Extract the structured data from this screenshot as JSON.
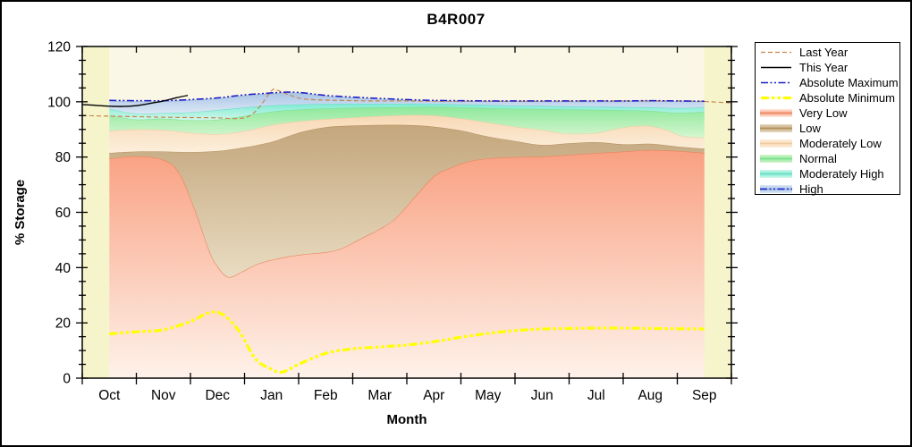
{
  "title": "B4R007",
  "axes": {
    "x_label": "Month",
    "y_label": "% Storage",
    "months": [
      "Oct",
      "Nov",
      "Dec",
      "Jan",
      "Feb",
      "Mar",
      "Apr",
      "May",
      "Jun",
      "Jul",
      "Aug",
      "Sep"
    ],
    "y_ticks": [
      0,
      20,
      40,
      60,
      80,
      100,
      120
    ],
    "y_minor_step": 5,
    "y_min": 0,
    "y_max": 120
  },
  "colors": {
    "plot_bg": "#FBF7E6",
    "edge_strip": "#F5F4CB",
    "frame": "#000000",
    "text": "#000000"
  },
  "legend": [
    {
      "label": "Last Year",
      "kind": "line",
      "color": "#C8854E",
      "width": 1.2,
      "dash": "5 3"
    },
    {
      "label": "This Year",
      "kind": "line",
      "color": "#000000",
      "width": 1.4,
      "dash": ""
    },
    {
      "label": "Absolute Maximum",
      "kind": "line",
      "color": "#1A1ACB",
      "width": 1.5,
      "dash": "8 2.5 2 2.5 2 2.5"
    },
    {
      "label": "Absolute Minimum",
      "kind": "line",
      "color": "#FFFF00",
      "width": 3.2,
      "dash": "9 3 3.5 3 3.5 3"
    },
    {
      "label": "Very Low",
      "kind": "band",
      "top": "#F9A081",
      "bottom": "#FDEDE3",
      "edge": "#E8845C"
    },
    {
      "label": "Low",
      "kind": "band",
      "top": "#C3A67C",
      "bottom": "#E9DCC2",
      "edge": "#B5915F"
    },
    {
      "label": "Moderately Low",
      "kind": "band",
      "top": "#F8D8B5",
      "bottom": "#FCEFDC",
      "edge": "#EDCB9F"
    },
    {
      "label": "Normal",
      "kind": "band",
      "top": "#8EE89B",
      "bottom": "#D6F6D0",
      "edge": "#7BDE8C"
    },
    {
      "label": "Moderately High",
      "kind": "band",
      "top": "#7EEBD3",
      "bottom": "#D2F7EA",
      "edge": "#66DCC4"
    },
    {
      "label": "High",
      "kind": "band",
      "top": "#AAC6E6",
      "bottom": "#DCE8F5",
      "edge": "#9FB9D8",
      "overlay_line": {
        "color": "#1A1ACB",
        "width": 1.5,
        "dash": "8 2.5 2 2.5 2 2.5"
      }
    }
  ],
  "chart_data": {
    "type": "area",
    "title": "B4R007",
    "xlabel": "Month",
    "ylabel": "% Storage",
    "ylim": [
      0,
      120
    ],
    "categories": [
      "Oct",
      "Nov",
      "Dec",
      "Jan",
      "Feb",
      "Mar",
      "Apr",
      "May",
      "Jun",
      "Jul",
      "Aug",
      "Sep"
    ],
    "x_unit_note": "x is in month units, 0 = Oct ... 11 = Sep, values are % storage",
    "boundaries": {
      "very_low_top": [
        [
          0,
          79.5
        ],
        [
          0.5,
          80.3
        ],
        [
          1,
          79
        ],
        [
          1.3,
          74
        ],
        [
          1.6,
          60
        ],
        [
          1.85,
          46
        ],
        [
          2,
          40.5
        ],
        [
          2.2,
          36.6
        ],
        [
          2.45,
          38.5
        ],
        [
          2.7,
          41
        ],
        [
          3,
          42.8
        ],
        [
          3.5,
          44.6
        ],
        [
          4,
          45.6
        ],
        [
          4.3,
          47
        ],
        [
          4.7,
          51
        ],
        [
          5,
          54
        ],
        [
          5.3,
          58
        ],
        [
          5.6,
          64.5
        ],
        [
          6,
          73
        ],
        [
          6.3,
          76
        ],
        [
          6.6,
          78.2
        ],
        [
          7,
          79.5
        ],
        [
          7.5,
          80
        ],
        [
          8,
          80.2
        ],
        [
          8.5,
          80.8
        ],
        [
          9,
          81.4
        ],
        [
          9.5,
          82
        ],
        [
          10,
          82.5
        ],
        [
          10.5,
          82.2
        ],
        [
          11,
          81.5
        ]
      ],
      "low_top": [
        [
          0,
          81.5
        ],
        [
          0.5,
          82
        ],
        [
          1,
          82
        ],
        [
          1.5,
          81.8
        ],
        [
          2,
          82.2
        ],
        [
          2.5,
          83.5
        ],
        [
          3,
          85.5
        ],
        [
          3.3,
          87.5
        ],
        [
          3.6,
          89.3
        ],
        [
          4,
          90.8
        ],
        [
          4.5,
          91.4
        ],
        [
          5,
          91.6
        ],
        [
          5.5,
          91.6
        ],
        [
          6,
          91
        ],
        [
          6.5,
          89.6
        ],
        [
          7,
          87.4
        ],
        [
          7.5,
          85.8
        ],
        [
          8,
          84.4
        ],
        [
          8.5,
          85
        ],
        [
          9,
          85.4
        ],
        [
          9.5,
          84.6
        ],
        [
          10,
          84.8
        ],
        [
          10.5,
          83.8
        ],
        [
          11,
          83
        ]
      ],
      "mod_low_top": [
        [
          0,
          89.5
        ],
        [
          0.5,
          90
        ],
        [
          1,
          89.8
        ],
        [
          1.5,
          88.8
        ],
        [
          2,
          88.3
        ],
        [
          2.5,
          89.4
        ],
        [
          3,
          91.6
        ],
        [
          3.5,
          92.9
        ],
        [
          4,
          93.7
        ],
        [
          4.5,
          94.3
        ],
        [
          5,
          94.8
        ],
        [
          5.5,
          95.2
        ],
        [
          6,
          95
        ],
        [
          6.5,
          94
        ],
        [
          7,
          92.5
        ],
        [
          7.5,
          91
        ],
        [
          8,
          89.8
        ],
        [
          8.3,
          88.8
        ],
        [
          8.6,
          88.4
        ],
        [
          9,
          88.7
        ],
        [
          9.4,
          90.3
        ],
        [
          9.7,
          91.2
        ],
        [
          10,
          91.2
        ],
        [
          10.3,
          89.8
        ],
        [
          10.6,
          87.6
        ],
        [
          11,
          87
        ]
      ],
      "normal_top": [
        [
          0,
          95.2
        ],
        [
          0.5,
          93.6
        ],
        [
          1,
          93.9
        ],
        [
          1.5,
          93.3
        ],
        [
          2,
          93.5
        ],
        [
          2.5,
          94.9
        ],
        [
          3,
          96.4
        ],
        [
          3.5,
          97.2
        ],
        [
          4,
          97.6
        ],
        [
          4.5,
          97.8
        ],
        [
          5,
          98
        ],
        [
          5.5,
          98.1
        ],
        [
          6,
          98.2
        ],
        [
          6.5,
          98
        ],
        [
          7,
          97.7
        ],
        [
          7.5,
          97.5
        ],
        [
          8,
          97.4
        ],
        [
          8.5,
          97.2
        ],
        [
          9,
          97.1
        ],
        [
          9.5,
          96.9
        ],
        [
          10,
          96.7
        ],
        [
          10.5,
          96
        ],
        [
          11,
          96.3
        ]
      ],
      "mod_high_top": [
        [
          0,
          97.4
        ],
        [
          0.5,
          95.7
        ],
        [
          1,
          95.9
        ],
        [
          1.5,
          96.2
        ],
        [
          2,
          97
        ],
        [
          2.5,
          97.9
        ],
        [
          3,
          98.7
        ],
        [
          3.5,
          99
        ],
        [
          4,
          99.2
        ],
        [
          5,
          99.3
        ],
        [
          6,
          99.2
        ],
        [
          6.5,
          99
        ],
        [
          7,
          98.8
        ],
        [
          7.5,
          98.6
        ],
        [
          8,
          98.5
        ],
        [
          8.5,
          98.3
        ],
        [
          9,
          98.2
        ],
        [
          9.5,
          98.1
        ],
        [
          10,
          98
        ],
        [
          10.5,
          97.7
        ],
        [
          11,
          97.9
        ]
      ],
      "high_top": [
        [
          0,
          100.1
        ],
        [
          0.5,
          100
        ],
        [
          1,
          100.1
        ],
        [
          1.5,
          100.5
        ],
        [
          2,
          101.1
        ],
        [
          2.5,
          102.2
        ],
        [
          3,
          102.9
        ],
        [
          3.3,
          103.2
        ],
        [
          3.6,
          102.9
        ],
        [
          4,
          102
        ],
        [
          4.5,
          101.4
        ],
        [
          5,
          100.9
        ],
        [
          5.5,
          100.5
        ],
        [
          6,
          100.2
        ],
        [
          6.5,
          100.1
        ],
        [
          7,
          100.1
        ],
        [
          8,
          100
        ],
        [
          9,
          100
        ],
        [
          10,
          100.1
        ],
        [
          11,
          100
        ]
      ]
    },
    "bands": [
      {
        "name": "Very Low",
        "upper": "very_low_top",
        "top": "#F9A081",
        "bottom": "#FEF2EA",
        "edge": "#E8845C",
        "edge_w": 1.2
      },
      {
        "name": "Low",
        "upper": "low_top",
        "top": "#C3A67C",
        "bottom": "#E9DCC2",
        "edge": "#B5915F",
        "edge_w": 1
      },
      {
        "name": "Moderately Low",
        "upper": "mod_low_top",
        "top": "#F8D8B5",
        "bottom": "#FCEFDC",
        "edge": "#EDCB9F",
        "edge_w": 1
      },
      {
        "name": "Normal",
        "upper": "normal_top",
        "top": "#8EE89B",
        "bottom": "#D6F6D0",
        "edge": "#7BDE8C",
        "edge_w": 1
      },
      {
        "name": "Moderately High",
        "upper": "mod_high_top",
        "top": "#7EEBD3",
        "bottom": "#D2F7EA",
        "edge": "#66DCC4",
        "edge_w": 1
      },
      {
        "name": "High",
        "upper": "high_top",
        "top": "#AAC6E6",
        "bottom": "#DCE8F5",
        "edge": "#9FB9D8",
        "edge_w": 0.8
      }
    ],
    "lines": [
      {
        "name": "Absolute Minimum",
        "color": "#FFFF00",
        "width": 3.2,
        "dash": "9 3 3.5 3 3.5 3",
        "points": [
          [
            0,
            16
          ],
          [
            0.5,
            16.8
          ],
          [
            1,
            17.5
          ],
          [
            1.5,
            20.5
          ],
          [
            1.85,
            23.7
          ],
          [
            2.1,
            23
          ],
          [
            2.4,
            17
          ],
          [
            2.7,
            7
          ],
          [
            3,
            3.2
          ],
          [
            3.2,
            2.2
          ],
          [
            3.5,
            5
          ],
          [
            4,
            9
          ],
          [
            4.5,
            10.6
          ],
          [
            5,
            11.3
          ],
          [
            5.5,
            12
          ],
          [
            6,
            13.2
          ],
          [
            6.5,
            14.8
          ],
          [
            7,
            16.2
          ],
          [
            7.5,
            17.2
          ],
          [
            8,
            17.8
          ],
          [
            8.5,
            18
          ],
          [
            9,
            18.1
          ],
          [
            9.5,
            18.1
          ],
          [
            10,
            18
          ],
          [
            10.5,
            17.9
          ],
          [
            11,
            17.8
          ]
        ]
      },
      {
        "name": "Last Year",
        "color": "#C8854E",
        "width": 1.2,
        "dash": "5 3",
        "points": [
          [
            -0.5,
            95
          ],
          [
            0,
            94.8
          ],
          [
            0.5,
            94.6
          ],
          [
            1,
            94.4
          ],
          [
            1.5,
            94.3
          ],
          [
            2,
            94.2
          ],
          [
            2.3,
            93.9
          ],
          [
            2.55,
            94.5
          ],
          [
            2.75,
            97.5
          ],
          [
            3,
            104
          ],
          [
            3.1,
            104.2
          ],
          [
            3.35,
            102.3
          ],
          [
            3.6,
            101
          ],
          [
            4,
            100.6
          ],
          [
            4.5,
            100.4
          ],
          [
            5,
            100.3
          ],
          [
            5.5,
            100.3
          ],
          [
            6,
            100.2
          ],
          [
            7,
            100.2
          ],
          [
            8,
            100.2
          ],
          [
            9,
            100.3
          ],
          [
            10,
            100.3
          ],
          [
            10.7,
            100.3
          ],
          [
            11.1,
            100
          ],
          [
            11.5,
            99.6
          ]
        ]
      },
      {
        "name": "Absolute Maximum",
        "color": "#1A1ACB",
        "width": 1.5,
        "dash": "8 2.5 2 2.5 2 2.5",
        "points": [
          [
            0,
            100.5
          ],
          [
            0.5,
            100.4
          ],
          [
            1,
            100.4
          ],
          [
            1.5,
            100.8
          ],
          [
            2,
            101.4
          ],
          [
            2.5,
            102.5
          ],
          [
            3,
            103.2
          ],
          [
            3.3,
            103.5
          ],
          [
            3.6,
            103.2
          ],
          [
            4,
            102.3
          ],
          [
            4.5,
            101.7
          ],
          [
            5,
            101.2
          ],
          [
            5.5,
            100.8
          ],
          [
            6,
            100.5
          ],
          [
            6.5,
            100.4
          ],
          [
            7,
            100.3
          ],
          [
            7.5,
            100.3
          ],
          [
            8,
            100.3
          ],
          [
            8.5,
            100.3
          ],
          [
            9,
            100.3
          ],
          [
            9.5,
            100.3
          ],
          [
            10,
            100.4
          ],
          [
            10.5,
            100.3
          ],
          [
            11,
            100.2
          ]
        ]
      },
      {
        "name": "This Year",
        "color": "#000000",
        "width": 1.4,
        "dash": "",
        "points": [
          [
            -0.5,
            99
          ],
          [
            -0.25,
            98.7
          ],
          [
            0,
            98.4
          ],
          [
            0.25,
            98.3
          ],
          [
            0.5,
            98.6
          ],
          [
            0.75,
            99.4
          ],
          [
            1,
            100.3
          ],
          [
            1.25,
            101.5
          ],
          [
            1.45,
            102.3
          ]
        ]
      }
    ]
  }
}
